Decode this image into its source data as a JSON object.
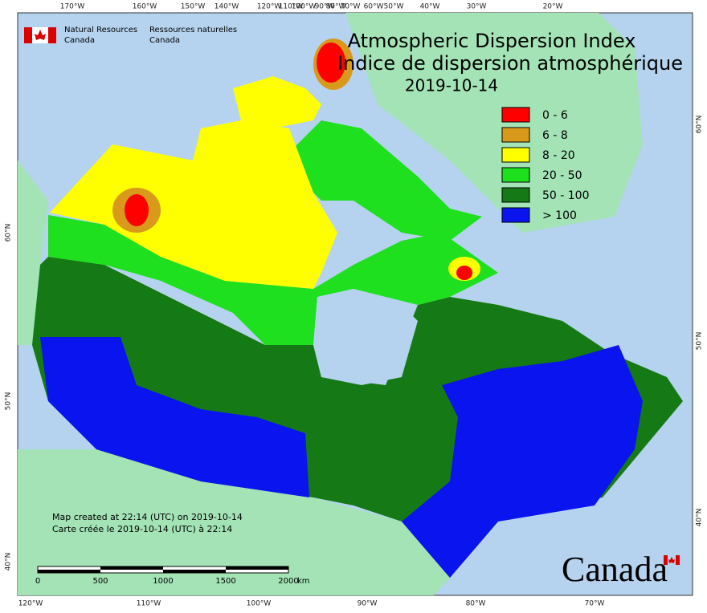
{
  "header": {
    "agency_en": [
      "Natural Resources",
      "Canada"
    ],
    "agency_fr": [
      "Ressources naturelles",
      "Canada"
    ],
    "title_en": "Atmospheric Dispersion Index",
    "title_fr": "Indice de dispersion atmosphérique",
    "date": "2019-10-14"
  },
  "legend": {
    "items": [
      {
        "label": "0 - 6",
        "color": "#ff0000"
      },
      {
        "label": "6 - 8",
        "color": "#d99a1c"
      },
      {
        "label": "8 - 20",
        "color": "#ffff00"
      },
      {
        "label": "20 - 50",
        "color": "#1ee01e"
      },
      {
        "label": "50 - 100",
        "color": "#157a15"
      },
      {
        "label": "> 100",
        "color": "#0a14ee"
      }
    ]
  },
  "graticule": {
    "top": [
      "170°W",
      "160°W",
      "150°W",
      "140°W",
      "120°W",
      "110°W",
      "100°W",
      "90°W",
      "80°W",
      "70°W",
      "60°W",
      "50°W",
      "40°W",
      "30°W",
      "20°W"
    ],
    "bottom": [
      "120°W",
      "110°W",
      "100°W",
      "90°W",
      "80°W",
      "70°W"
    ],
    "left": [
      "60°N",
      "50°N",
      "40°N"
    ],
    "right": [
      "60°N",
      "50°N",
      "40°N"
    ]
  },
  "footer": {
    "created_en": "Map created at 22:14 (UTC) on 2019-10-14",
    "created_fr": "Carte créée le 2019-10-14 (UTC) à 22:14",
    "scale": [
      "0",
      "500",
      "1000",
      "1500",
      "2000"
    ],
    "scale_unit": "km",
    "wordmark": "Canada"
  }
}
